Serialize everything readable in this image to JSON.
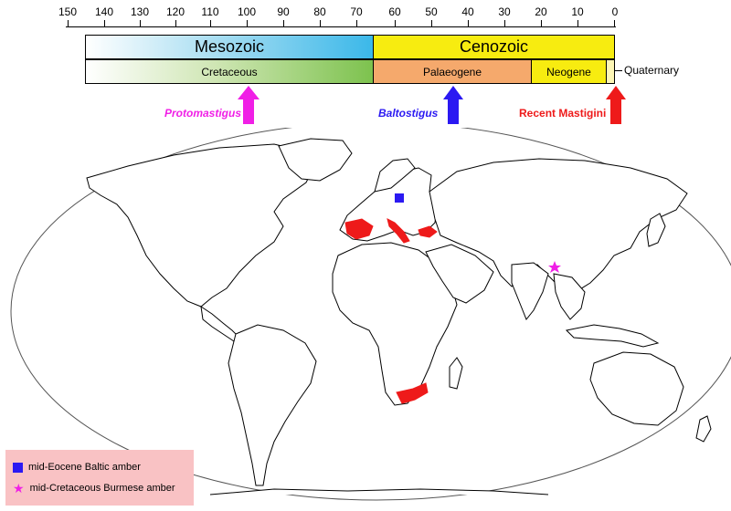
{
  "timeline": {
    "ticks": [
      "150",
      "140",
      "130",
      "120",
      "110",
      "100",
      "90",
      "80",
      "70",
      "60",
      "50",
      "40",
      "30",
      "20",
      "10",
      "0"
    ],
    "eras": [
      {
        "label": "Mesozoic"
      },
      {
        "label": "Cenozoic"
      }
    ],
    "periods": [
      {
        "label": "Cretaceous"
      },
      {
        "label": "Palaeogene"
      },
      {
        "label": "Neogene"
      },
      {
        "label": "Quaternary"
      }
    ]
  },
  "arrows": [
    {
      "label": "Protomastigus",
      "color": "#f01fe6"
    },
    {
      "label": "Baltostigus",
      "color": "#2b19f2"
    },
    {
      "label": "Recent Mastigini",
      "color": "#ee1a1a"
    }
  ],
  "legend": {
    "items": [
      {
        "label": "mid-Eocene Baltic amber",
        "symbol": "square",
        "color": "#2b19f2"
      },
      {
        "label": "mid-Cretaceous Burmese amber",
        "symbol": "star",
        "color": "#f01fe6"
      }
    ]
  }
}
